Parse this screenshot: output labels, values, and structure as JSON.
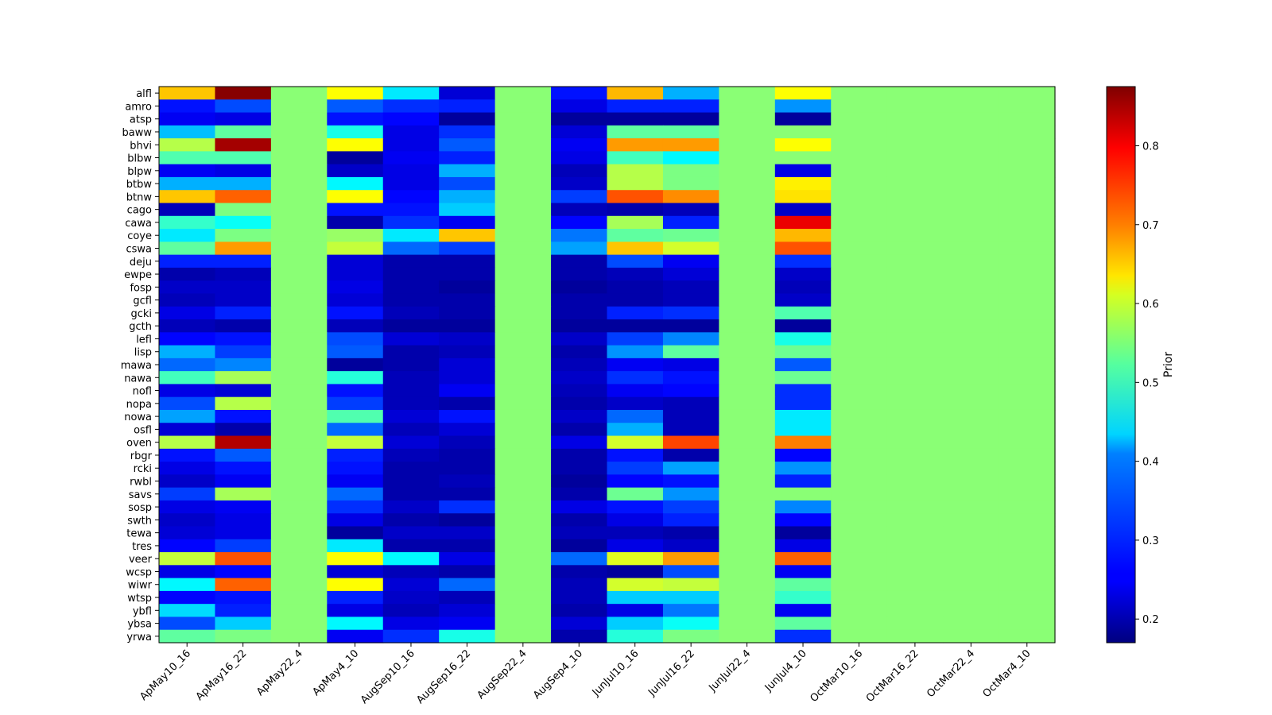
{
  "chart_data": {
    "type": "heatmap",
    "title": "",
    "xlabel": "",
    "ylabel": "",
    "colormap": "jet",
    "color_range": [
      0.17,
      0.875
    ],
    "colorbar": {
      "label": "Prior",
      "ticks": [
        0.2,
        0.3,
        0.4,
        0.5,
        0.6,
        0.7,
        0.8
      ],
      "tick_labels": [
        "0.2",
        "0.3",
        "0.4",
        "0.5",
        "0.6",
        "0.7",
        "0.8"
      ]
    },
    "x_labels": [
      "ApMay10_16",
      "ApMay16_22",
      "ApMay22_4",
      "ApMay4_10",
      "AugSep10_16",
      "AugSep16_22",
      "AugSep22_4",
      "AugSep4_10",
      "JunJul10_16",
      "JunJul16_22",
      "JunJul22_4",
      "JunJul4_10",
      "OctMar10_16",
      "OctMar16_22",
      "OctMar22_4",
      "OctMar4_10"
    ],
    "y_labels": [
      "alfl",
      "amro",
      "atsp",
      "baww",
      "bhvi",
      "blbw",
      "blpw",
      "btbw",
      "btnw",
      "cago",
      "cawa",
      "coye",
      "cswa",
      "deju",
      "ewpe",
      "fosp",
      "gcfl",
      "gcki",
      "gcth",
      "lefl",
      "lisp",
      "mawa",
      "nawa",
      "nofl",
      "nopa",
      "nowa",
      "osfl",
      "oven",
      "rbgr",
      "rcki",
      "rwbl",
      "savs",
      "sosp",
      "swth",
      "tewa",
      "tres",
      "veer",
      "wcsp",
      "wiwr",
      "wtsp",
      "ybfl",
      "ybsa",
      "yrwa"
    ],
    "values": [
      [
        0.65,
        0.87,
        0.53,
        0.61,
        0.42,
        0.23,
        0.53,
        0.27,
        0.66,
        0.38,
        0.53,
        0.61,
        0.53,
        0.53,
        0.53,
        0.53
      ],
      [
        0.27,
        0.31,
        0.53,
        0.32,
        0.29,
        0.28,
        0.53,
        0.24,
        0.28,
        0.28,
        0.53,
        0.36,
        0.53,
        0.53,
        0.53,
        0.53
      ],
      [
        0.25,
        0.24,
        0.53,
        0.27,
        0.26,
        0.19,
        0.53,
        0.19,
        0.19,
        0.19,
        0.53,
        0.19,
        0.53,
        0.53,
        0.53,
        0.53
      ],
      [
        0.39,
        0.5,
        0.53,
        0.45,
        0.24,
        0.29,
        0.53,
        0.23,
        0.5,
        0.5,
        0.53,
        0.53,
        0.53,
        0.53,
        0.53,
        0.53
      ],
      [
        0.56,
        0.85,
        0.53,
        0.61,
        0.24,
        0.32,
        0.53,
        0.25,
        0.68,
        0.68,
        0.53,
        0.61,
        0.53,
        0.53,
        0.53,
        0.53
      ],
      [
        0.49,
        0.49,
        0.53,
        0.19,
        0.25,
        0.28,
        0.53,
        0.24,
        0.48,
        0.43,
        0.53,
        0.53,
        0.53,
        0.53,
        0.53,
        0.53
      ],
      [
        0.25,
        0.24,
        0.53,
        0.22,
        0.24,
        0.38,
        0.53,
        0.21,
        0.56,
        0.52,
        0.53,
        0.24,
        0.53,
        0.53,
        0.53,
        0.53
      ],
      [
        0.38,
        0.38,
        0.53,
        0.43,
        0.24,
        0.31,
        0.53,
        0.22,
        0.56,
        0.52,
        0.53,
        0.62,
        0.53,
        0.53,
        0.53,
        0.53
      ],
      [
        0.65,
        0.72,
        0.53,
        0.61,
        0.26,
        0.38,
        0.53,
        0.3,
        0.73,
        0.69,
        0.53,
        0.63,
        0.53,
        0.53,
        0.53,
        0.53
      ],
      [
        0.21,
        0.52,
        0.53,
        0.27,
        0.27,
        0.4,
        0.53,
        0.21,
        0.2,
        0.21,
        0.53,
        0.22,
        0.53,
        0.53,
        0.53,
        0.53
      ],
      [
        0.47,
        0.44,
        0.53,
        0.2,
        0.29,
        0.25,
        0.53,
        0.26,
        0.55,
        0.28,
        0.53,
        0.8,
        0.53,
        0.53,
        0.53,
        0.53
      ],
      [
        0.42,
        0.52,
        0.53,
        0.54,
        0.42,
        0.65,
        0.53,
        0.34,
        0.5,
        0.51,
        0.53,
        0.66,
        0.53,
        0.53,
        0.53,
        0.53
      ],
      [
        0.5,
        0.68,
        0.53,
        0.57,
        0.33,
        0.3,
        0.53,
        0.37,
        0.65,
        0.58,
        0.53,
        0.73,
        0.53,
        0.53,
        0.53,
        0.53
      ],
      [
        0.28,
        0.28,
        0.53,
        0.23,
        0.2,
        0.2,
        0.53,
        0.2,
        0.31,
        0.25,
        0.53,
        0.29,
        0.53,
        0.53,
        0.53,
        0.53
      ],
      [
        0.2,
        0.21,
        0.53,
        0.23,
        0.2,
        0.2,
        0.53,
        0.2,
        0.21,
        0.23,
        0.53,
        0.22,
        0.53,
        0.53,
        0.53,
        0.53
      ],
      [
        0.22,
        0.22,
        0.53,
        0.24,
        0.2,
        0.19,
        0.53,
        0.19,
        0.2,
        0.21,
        0.53,
        0.21,
        0.53,
        0.53,
        0.53,
        0.53
      ],
      [
        0.21,
        0.22,
        0.53,
        0.23,
        0.2,
        0.2,
        0.53,
        0.2,
        0.2,
        0.21,
        0.53,
        0.22,
        0.53,
        0.53,
        0.53,
        0.53
      ],
      [
        0.24,
        0.28,
        0.53,
        0.27,
        0.21,
        0.2,
        0.53,
        0.2,
        0.28,
        0.29,
        0.53,
        0.49,
        0.53,
        0.53,
        0.53,
        0.53
      ],
      [
        0.21,
        0.2,
        0.53,
        0.21,
        0.19,
        0.19,
        0.53,
        0.19,
        0.19,
        0.19,
        0.53,
        0.19,
        0.53,
        0.53,
        0.53,
        0.53
      ],
      [
        0.26,
        0.27,
        0.53,
        0.31,
        0.23,
        0.22,
        0.53,
        0.22,
        0.3,
        0.35,
        0.53,
        0.45,
        0.53,
        0.53,
        0.53,
        0.53
      ],
      [
        0.38,
        0.3,
        0.53,
        0.32,
        0.2,
        0.21,
        0.53,
        0.2,
        0.36,
        0.5,
        0.53,
        0.51,
        0.53,
        0.53,
        0.53,
        0.53
      ],
      [
        0.33,
        0.35,
        0.53,
        0.19,
        0.2,
        0.23,
        0.53,
        0.21,
        0.25,
        0.24,
        0.53,
        0.32,
        0.53,
        0.53,
        0.53,
        0.53
      ],
      [
        0.48,
        0.55,
        0.53,
        0.46,
        0.21,
        0.23,
        0.53,
        0.22,
        0.29,
        0.27,
        0.53,
        0.51,
        0.53,
        0.53,
        0.53,
        0.53
      ],
      [
        0.24,
        0.23,
        0.53,
        0.27,
        0.21,
        0.25,
        0.53,
        0.21,
        0.25,
        0.26,
        0.53,
        0.29,
        0.53,
        0.53,
        0.53,
        0.53
      ],
      [
        0.31,
        0.56,
        0.53,
        0.3,
        0.21,
        0.2,
        0.53,
        0.2,
        0.22,
        0.21,
        0.53,
        0.29,
        0.53,
        0.53,
        0.53,
        0.53
      ],
      [
        0.37,
        0.27,
        0.53,
        0.49,
        0.23,
        0.27,
        0.53,
        0.22,
        0.33,
        0.21,
        0.53,
        0.42,
        0.53,
        0.53,
        0.53,
        0.53
      ],
      [
        0.23,
        0.2,
        0.53,
        0.33,
        0.21,
        0.23,
        0.53,
        0.2,
        0.38,
        0.21,
        0.53,
        0.42,
        0.53,
        0.53,
        0.53,
        0.53
      ],
      [
        0.56,
        0.84,
        0.53,
        0.57,
        0.23,
        0.21,
        0.53,
        0.24,
        0.58,
        0.74,
        0.53,
        0.7,
        0.53,
        0.53,
        0.53,
        0.53
      ],
      [
        0.27,
        0.32,
        0.53,
        0.28,
        0.21,
        0.2,
        0.53,
        0.2,
        0.27,
        0.2,
        0.53,
        0.26,
        0.53,
        0.53,
        0.53,
        0.53
      ],
      [
        0.24,
        0.27,
        0.53,
        0.27,
        0.2,
        0.2,
        0.53,
        0.2,
        0.3,
        0.37,
        0.53,
        0.36,
        0.53,
        0.53,
        0.53,
        0.53
      ],
      [
        0.22,
        0.25,
        0.53,
        0.25,
        0.2,
        0.21,
        0.53,
        0.19,
        0.26,
        0.27,
        0.53,
        0.28,
        0.53,
        0.53,
        0.53,
        0.53
      ],
      [
        0.3,
        0.55,
        0.53,
        0.33,
        0.2,
        0.2,
        0.53,
        0.2,
        0.51,
        0.36,
        0.53,
        0.53,
        0.53,
        0.53,
        0.53,
        0.53
      ],
      [
        0.24,
        0.25,
        0.53,
        0.29,
        0.22,
        0.29,
        0.53,
        0.24,
        0.27,
        0.3,
        0.53,
        0.35,
        0.53,
        0.53,
        0.53,
        0.53
      ],
      [
        0.22,
        0.24,
        0.53,
        0.24,
        0.2,
        0.19,
        0.53,
        0.2,
        0.24,
        0.28,
        0.53,
        0.26,
        0.53,
        0.53,
        0.53,
        0.53
      ],
      [
        0.23,
        0.24,
        0.53,
        0.19,
        0.22,
        0.22,
        0.53,
        0.21,
        0.21,
        0.2,
        0.53,
        0.19,
        0.53,
        0.53,
        0.53,
        0.53
      ],
      [
        0.26,
        0.3,
        0.53,
        0.42,
        0.2,
        0.2,
        0.53,
        0.19,
        0.24,
        0.22,
        0.53,
        0.24,
        0.53,
        0.53,
        0.53,
        0.53
      ],
      [
        0.57,
        0.73,
        0.53,
        0.61,
        0.43,
        0.24,
        0.53,
        0.33,
        0.59,
        0.68,
        0.53,
        0.72,
        0.53,
        0.53,
        0.53,
        0.53
      ],
      [
        0.24,
        0.26,
        0.53,
        0.23,
        0.21,
        0.2,
        0.53,
        0.2,
        0.19,
        0.31,
        0.53,
        0.25,
        0.53,
        0.53,
        0.53,
        0.53
      ],
      [
        0.43,
        0.72,
        0.53,
        0.61,
        0.23,
        0.33,
        0.53,
        0.21,
        0.58,
        0.57,
        0.53,
        0.5,
        0.53,
        0.53,
        0.53,
        0.53
      ],
      [
        0.26,
        0.27,
        0.53,
        0.28,
        0.22,
        0.21,
        0.53,
        0.21,
        0.4,
        0.4,
        0.53,
        0.47,
        0.53,
        0.53,
        0.53,
        0.53
      ],
      [
        0.41,
        0.28,
        0.53,
        0.24,
        0.21,
        0.23,
        0.53,
        0.2,
        0.24,
        0.34,
        0.53,
        0.25,
        0.53,
        0.53,
        0.53,
        0.53
      ],
      [
        0.31,
        0.4,
        0.53,
        0.43,
        0.24,
        0.25,
        0.53,
        0.23,
        0.4,
        0.44,
        0.53,
        0.5,
        0.53,
        0.53,
        0.53,
        0.53
      ],
      [
        0.5,
        0.52,
        0.53,
        0.25,
        0.29,
        0.45,
        0.53,
        0.2,
        0.46,
        0.52,
        0.53,
        0.29,
        0.53,
        0.53,
        0.53,
        0.53
      ]
    ]
  }
}
